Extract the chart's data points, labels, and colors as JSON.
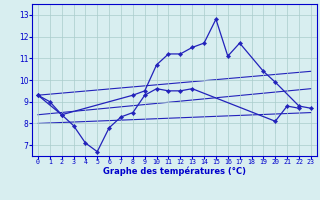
{
  "xlabel": "Graphe des températures (°C)",
  "background_color": "#d8eef0",
  "line_color": "#2222bb",
  "grid_color": "#aacccc",
  "xlim": [
    -0.5,
    23.5
  ],
  "ylim": [
    6.5,
    13.5
  ],
  "yticks": [
    7,
    8,
    9,
    10,
    11,
    12,
    13
  ],
  "xticks": [
    0,
    1,
    2,
    3,
    4,
    5,
    6,
    7,
    8,
    9,
    10,
    11,
    12,
    13,
    14,
    15,
    16,
    17,
    18,
    19,
    20,
    21,
    22,
    23
  ],
  "line_min_x": [
    0,
    1,
    2,
    3,
    4,
    5,
    6,
    7,
    8,
    9,
    10,
    11,
    12,
    13,
    20,
    21,
    22
  ],
  "line_min_y": [
    9.3,
    9.0,
    8.4,
    7.9,
    7.1,
    6.7,
    7.8,
    8.3,
    8.5,
    9.3,
    9.6,
    9.5,
    9.5,
    9.6,
    8.1,
    8.8,
    8.7
  ],
  "line_max_x": [
    0,
    2,
    8,
    9,
    10,
    11,
    12,
    13,
    14,
    15,
    16,
    17,
    19,
    20,
    22,
    23
  ],
  "line_max_y": [
    9.3,
    8.4,
    9.3,
    9.5,
    10.7,
    11.2,
    11.2,
    11.5,
    11.7,
    12.8,
    11.1,
    11.7,
    10.4,
    9.9,
    8.8,
    8.7
  ],
  "trend1_x": [
    0,
    23
  ],
  "trend1_y": [
    9.3,
    10.4
  ],
  "trend2_x": [
    0,
    23
  ],
  "trend2_y": [
    8.4,
    9.6
  ],
  "trend3_x": [
    0,
    23
  ],
  "trend3_y": [
    8.0,
    8.5
  ]
}
